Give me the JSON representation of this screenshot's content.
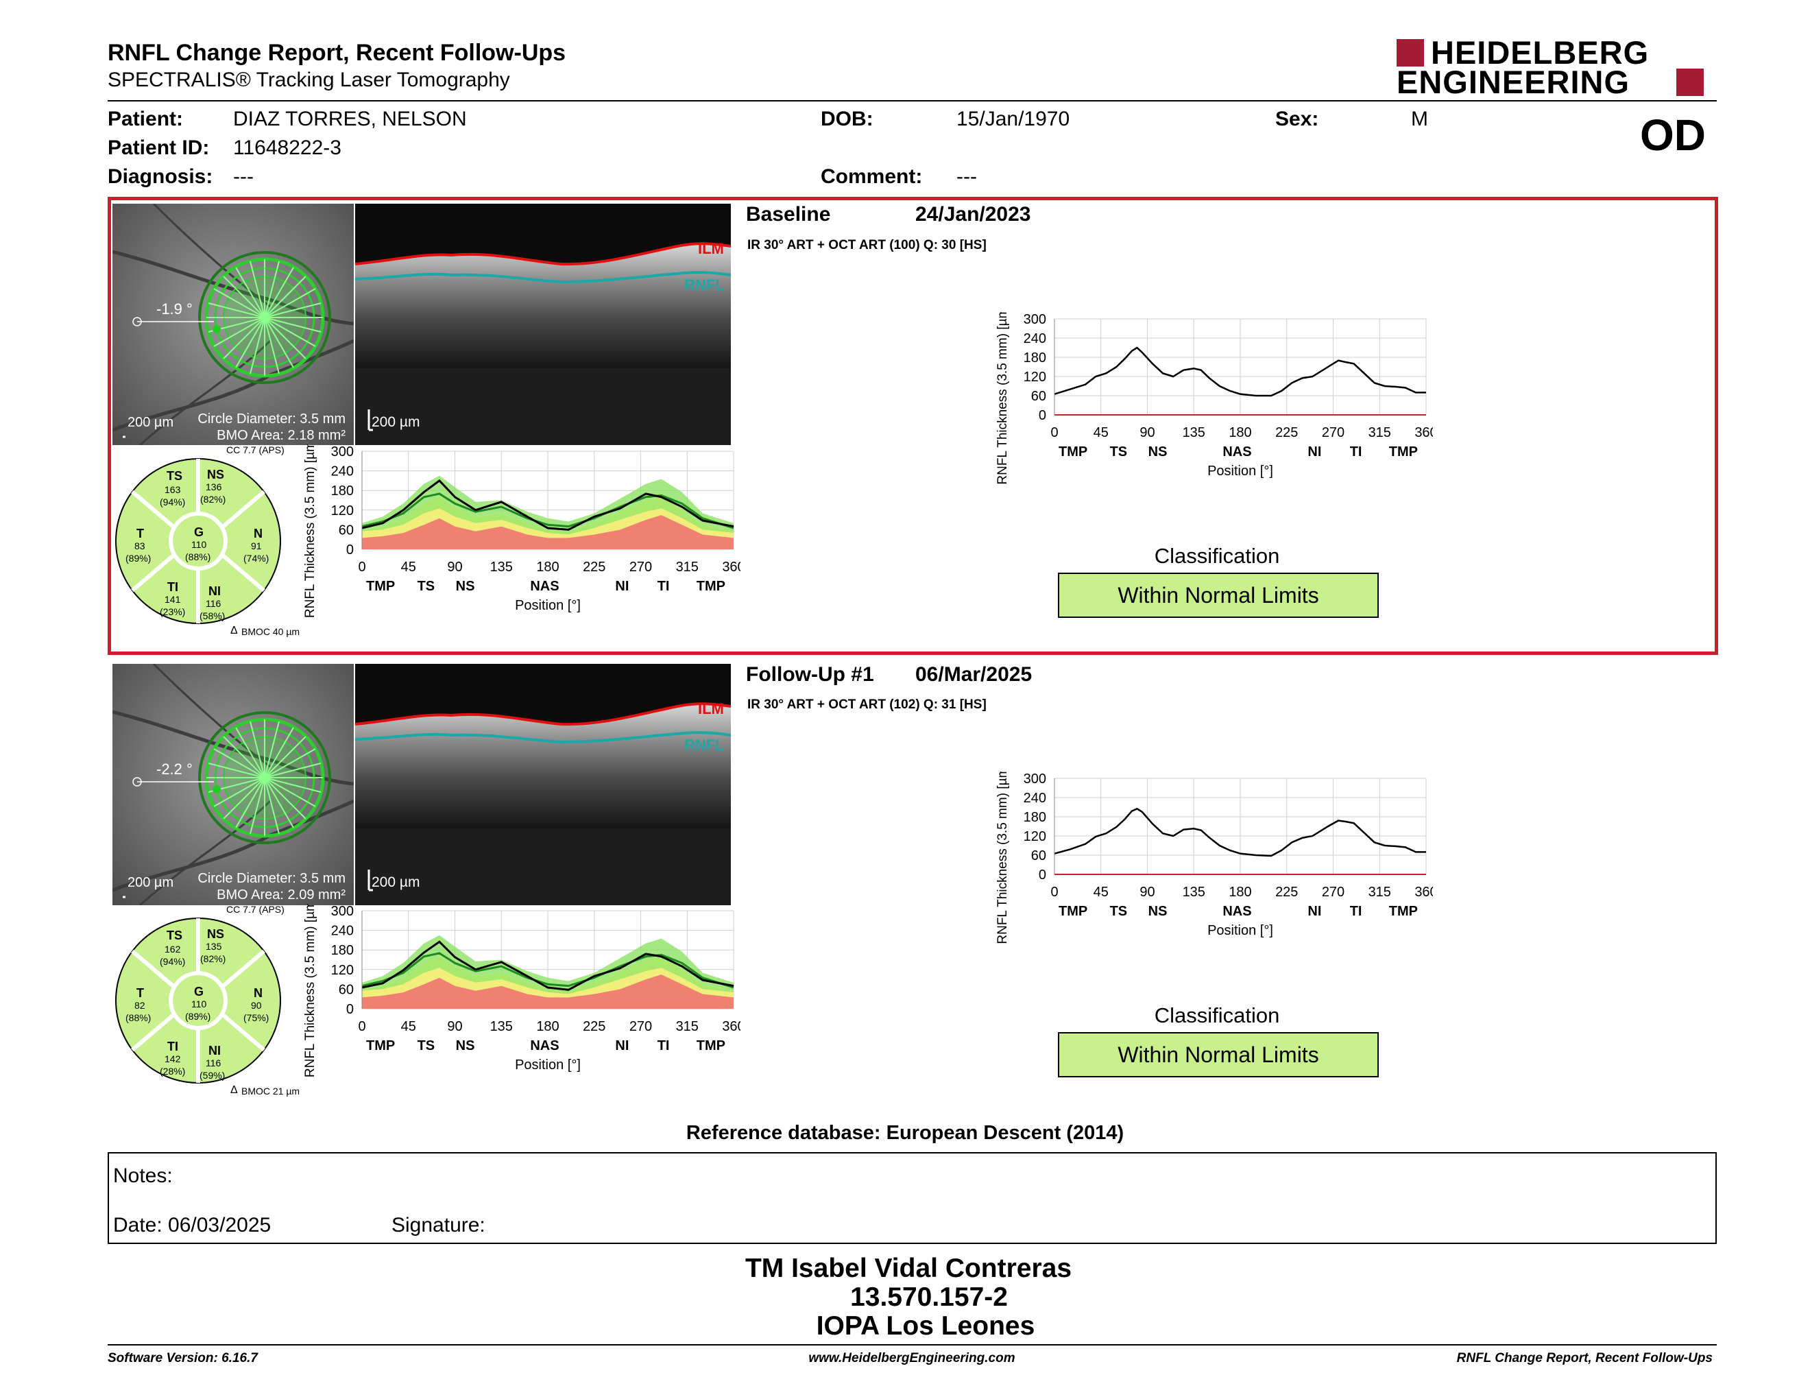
{
  "header": {
    "title": "RNFL Change Report, Recent Follow-Ups",
    "subtitle": "SPECTRALIS® Tracking Laser Tomography",
    "logo_line1": "HEIDELBERG",
    "logo_line2": "ENGINEERING",
    "eye": "OD"
  },
  "patient": {
    "patient_label": "Patient:",
    "patient_value": "DIAZ TORRES, NELSON",
    "id_label": "Patient ID:",
    "id_value": "11648222-3",
    "diagnosis_label": "Diagnosis:",
    "diagnosis_value": "---",
    "dob_label": "DOB:",
    "dob_value": "15/Jan/1970",
    "comment_label": "Comment:",
    "comment_value": "---",
    "sex_label": "Sex:",
    "sex_value": "M"
  },
  "exams": [
    {
      "title": "Baseline",
      "date": "24/Jan/2023",
      "scan_info": "IR 30° ART + OCT ART (100) Q: 30 [HS]",
      "angle": "-1.9 °",
      "fundus_scale": "200 µm",
      "circle_diameter": "Circle Diameter: 3.5 mm",
      "bmo_area": "BMO Area: 2.18 mm²",
      "oct_scale": "200 µm",
      "ilm": "ILM",
      "rnfl": "RNFL",
      "cc": "CC 7.7 (APS)",
      "bmoc": "BMOC 40 µm",
      "sectors": {
        "TS": {
          "label": "TS",
          "value": "163",
          "pct": "(94%)"
        },
        "NS": {
          "label": "NS",
          "value": "136",
          "pct": "(82%)"
        },
        "T": {
          "label": "T",
          "value": "83",
          "pct": "(89%)"
        },
        "G": {
          "label": "G",
          "value": "110",
          "pct": "(88%)"
        },
        "N": {
          "label": "N",
          "value": "91",
          "pct": "(74%)"
        },
        "TI": {
          "label": "TI",
          "value": "141",
          "pct": "(23%)"
        },
        "NI": {
          "label": "NI",
          "value": "116",
          "pct": "(58%)"
        }
      },
      "classification_label": "Classification",
      "classification_value": "Within Normal Limits"
    },
    {
      "title": "Follow-Up #1",
      "date": "06/Mar/2025",
      "scan_info": "IR 30° ART + OCT ART (102) Q: 31 [HS]",
      "angle": "-2.2 °",
      "fundus_scale": "200 µm",
      "circle_diameter": "Circle Diameter: 3.5 mm",
      "bmo_area": "BMO Area: 2.09 mm²",
      "oct_scale": "200 µm",
      "ilm": "ILM",
      "rnfl": "RNFL",
      "cc": "CC 7.7 (APS)",
      "bmoc": "BMOC 21 µm",
      "sectors": {
        "TS": {
          "label": "TS",
          "value": "162",
          "pct": "(94%)"
        },
        "NS": {
          "label": "NS",
          "value": "135",
          "pct": "(82%)"
        },
        "T": {
          "label": "T",
          "value": "82",
          "pct": "(88%)"
        },
        "G": {
          "label": "G",
          "value": "110",
          "pct": "(89%)"
        },
        "N": {
          "label": "N",
          "value": "90",
          "pct": "(75%)"
        },
        "TI": {
          "label": "TI",
          "value": "142",
          "pct": "(28%)"
        },
        "NI": {
          "label": "NI",
          "value": "116",
          "pct": "(59%)"
        }
      },
      "classification_label": "Classification",
      "classification_value": "Within Normal Limits"
    }
  ],
  "chart_data": [
    {
      "type": "line",
      "ylabel": "RNFL Thickness (3.5 mm) [µm]",
      "xlabel": "Position [°]",
      "xlim": [
        0,
        360
      ],
      "ylim": [
        0,
        300
      ],
      "x_ticks": [
        0,
        45,
        90,
        135,
        180,
        225,
        270,
        315,
        360
      ],
      "y_ticks": [
        0,
        60,
        120,
        180,
        240,
        300
      ],
      "sector_labels": [
        "TMP",
        "TS",
        "NS",
        "NAS",
        "NI",
        "TI",
        "TMP"
      ],
      "sector_positions": [
        18,
        62,
        100,
        177,
        252,
        292,
        338
      ],
      "x": [
        0,
        15,
        30,
        40,
        50,
        60,
        68,
        75,
        80,
        85,
        95,
        105,
        115,
        125,
        135,
        142,
        150,
        160,
        170,
        180,
        195,
        210,
        220,
        230,
        240,
        250,
        265,
        275,
        282,
        290,
        300,
        310,
        320,
        330,
        340,
        350,
        360
      ],
      "series": [
        {
          "values": [
            65,
            80,
            95,
            120,
            130,
            150,
            175,
            200,
            210,
            195,
            160,
            130,
            120,
            140,
            145,
            140,
            115,
            90,
            75,
            65,
            60,
            60,
            75,
            100,
            115,
            120,
            150,
            170,
            165,
            160,
            130,
            100,
            90,
            88,
            85,
            70,
            70
          ]
        }
      ]
    },
    {
      "type": "line",
      "ylabel": "RNFL Thickness (3.5 mm) [µm]",
      "xlabel": "Position [°]",
      "xlim": [
        0,
        360
      ],
      "ylim": [
        0,
        300
      ],
      "x_ticks": [
        0,
        45,
        90,
        135,
        180,
        225,
        270,
        315,
        360
      ],
      "y_ticks": [
        0,
        60,
        120,
        180,
        240,
        300
      ],
      "sector_labels": [
        "TMP",
        "TS",
        "NS",
        "NAS",
        "NI",
        "TI",
        "TMP"
      ],
      "sector_positions": [
        18,
        62,
        100,
        177,
        252,
        292,
        338
      ],
      "x": [
        0,
        15,
        30,
        40,
        50,
        60,
        68,
        75,
        80,
        85,
        95,
        105,
        115,
        125,
        135,
        142,
        150,
        160,
        170,
        180,
        195,
        210,
        220,
        230,
        240,
        250,
        265,
        275,
        282,
        290,
        300,
        310,
        320,
        330,
        340,
        350,
        360
      ],
      "series": [
        {
          "values": [
            65,
            78,
            95,
            118,
            128,
            148,
            172,
            198,
            205,
            195,
            158,
            128,
            120,
            140,
            143,
            138,
            115,
            90,
            75,
            65,
            60,
            58,
            75,
            100,
            114,
            120,
            150,
            168,
            165,
            160,
            130,
            100,
            90,
            88,
            85,
            70,
            70
          ]
        }
      ]
    },
    {
      "type": "area",
      "ylabel": "RNFL Thickness (3.5 mm) [µm]",
      "xlabel": "Position [°]",
      "xlim": [
        0,
        360
      ],
      "ylim": [
        0,
        300
      ],
      "x_ticks": [
        0,
        45,
        90,
        135,
        180,
        225,
        270,
        315,
        360
      ],
      "y_ticks": [
        0,
        60,
        120,
        180,
        240,
        300
      ],
      "sector_labels": [
        "TMP",
        "TS",
        "NS",
        "NAS",
        "NI",
        "TI",
        "TMP"
      ],
      "sector_positions": [
        18,
        62,
        100,
        177,
        252,
        292,
        338
      ],
      "x": [
        0,
        20,
        40,
        60,
        75,
        90,
        110,
        135,
        160,
        180,
        200,
        225,
        250,
        275,
        290,
        310,
        330,
        360
      ],
      "upper": [
        80,
        100,
        140,
        200,
        225,
        190,
        145,
        150,
        115,
        95,
        85,
        110,
        155,
        200,
        215,
        175,
        110,
        80
      ],
      "green_low": [
        60,
        70,
        95,
        140,
        160,
        130,
        100,
        110,
        80,
        60,
        55,
        80,
        115,
        150,
        160,
        120,
        75,
        55
      ],
      "yellow_top": [
        55,
        60,
        75,
        110,
        125,
        100,
        80,
        90,
        65,
        50,
        45,
        65,
        90,
        115,
        125,
        95,
        60,
        50
      ],
      "red_top": [
        35,
        40,
        50,
        75,
        95,
        70,
        55,
        70,
        45,
        35,
        35,
        45,
        60,
        90,
        105,
        75,
        45,
        35
      ],
      "mean": [
        70,
        85,
        110,
        160,
        170,
        140,
        115,
        130,
        95,
        75,
        70,
        95,
        130,
        160,
        165,
        140,
        95,
        65
      ],
      "measured": [
        65,
        80,
        120,
        175,
        210,
        160,
        120,
        145,
        100,
        65,
        60,
        100,
        125,
        170,
        160,
        130,
        88,
        70
      ]
    },
    {
      "type": "area",
      "ylabel": "RNFL Thickness (3.5 mm) [µm]",
      "xlabel": "Position [°]",
      "xlim": [
        0,
        360
      ],
      "ylim": [
        0,
        300
      ],
      "x_ticks": [
        0,
        45,
        90,
        135,
        180,
        225,
        270,
        315,
        360
      ],
      "y_ticks": [
        0,
        60,
        120,
        180,
        240,
        300
      ],
      "sector_labels": [
        "TMP",
        "TS",
        "NS",
        "NAS",
        "NI",
        "TI",
        "TMP"
      ],
      "sector_positions": [
        18,
        62,
        100,
        177,
        252,
        292,
        338
      ],
      "x": [
        0,
        20,
        40,
        60,
        75,
        90,
        110,
        135,
        160,
        180,
        200,
        225,
        250,
        275,
        290,
        310,
        330,
        360
      ],
      "upper": [
        80,
        100,
        140,
        200,
        225,
        190,
        145,
        150,
        115,
        95,
        85,
        110,
        155,
        200,
        215,
        175,
        110,
        80
      ],
      "green_low": [
        60,
        70,
        95,
        140,
        160,
        130,
        100,
        110,
        80,
        60,
        55,
        80,
        115,
        150,
        160,
        120,
        75,
        55
      ],
      "yellow_top": [
        55,
        60,
        75,
        110,
        125,
        100,
        80,
        90,
        65,
        50,
        45,
        65,
        90,
        115,
        125,
        95,
        60,
        50
      ],
      "red_top": [
        35,
        40,
        50,
        75,
        95,
        70,
        55,
        70,
        45,
        35,
        35,
        45,
        60,
        90,
        105,
        75,
        45,
        35
      ],
      "mean": [
        70,
        85,
        110,
        160,
        170,
        140,
        115,
        130,
        95,
        75,
        70,
        95,
        130,
        160,
        165,
        140,
        95,
        65
      ],
      "measured": [
        65,
        78,
        118,
        172,
        205,
        158,
        120,
        143,
        100,
        65,
        58,
        100,
        124,
        168,
        160,
        130,
        88,
        70
      ]
    }
  ],
  "reference_db": "Reference database: European Descent (2014)",
  "notes": {
    "notes_label": "Notes:",
    "date_label": "Date: 06/03/2025",
    "signature_label": "Signature:"
  },
  "signature_block": {
    "name": "TM Isabel Vidal Contreras",
    "rut": "13.570.157-2",
    "institution": "IOPA Los Leones"
  },
  "footer": {
    "left": "Software Version: 6.16.7",
    "center": "www.HeidelbergEngineering.com",
    "right": "RNFL Change Report, Recent Follow-Ups"
  },
  "colors": {
    "frame_red": "#cc1f2a",
    "logo_red": "#a31c33",
    "wnl_green": "#c8f08c",
    "band_green": "#86e05a",
    "band_yellow": "#f2ee7a",
    "band_red": "#f08070"
  }
}
